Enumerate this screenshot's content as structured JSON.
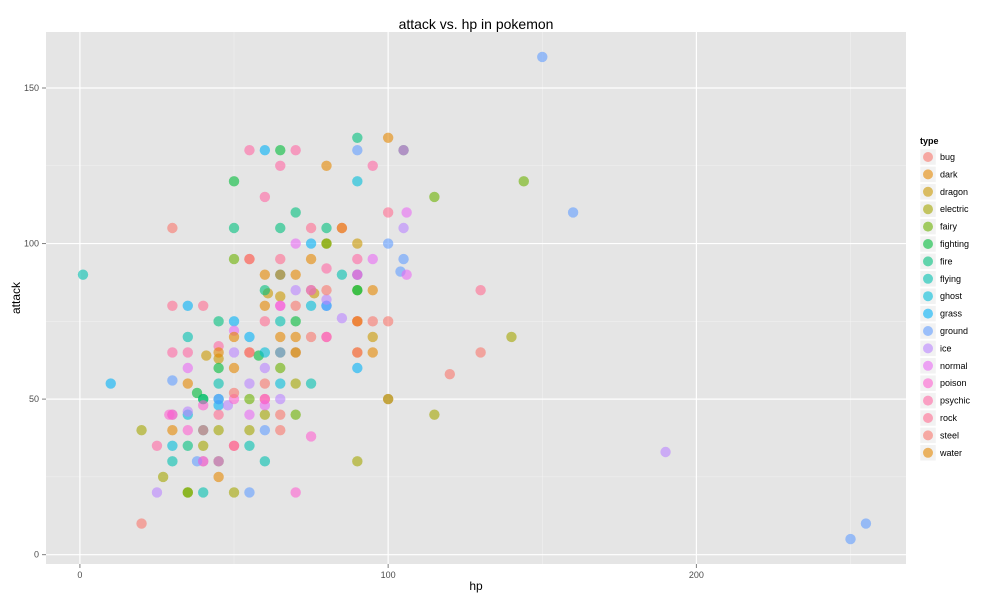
{
  "chart_data": {
    "type": "scatter",
    "title": "attack vs. hp in pokemon",
    "xlabel": "hp",
    "ylabel": "attack",
    "xlim": [
      -11,
      268
    ],
    "ylim": [
      -3,
      168
    ],
    "x_ticks": [
      0,
      100,
      200
    ],
    "y_ticks": [
      0,
      50,
      100,
      150
    ],
    "x_tick_labels": [
      "0",
      "100",
      "200"
    ],
    "y_tick_labels": [
      "0",
      "50",
      "100",
      "150"
    ],
    "grid": true,
    "legend": {
      "title": "type",
      "placement": "right"
    },
    "colors": {
      "panel": "#e5e5e5",
      "gridline": "#ffffff",
      "bug": "#f8766d",
      "dark": "#e58700",
      "dragon": "#c99800",
      "electric": "#a3a500",
      "fairy": "#6bb100",
      "fighting": "#00ba38",
      "fire": "#00bf7d",
      "flying": "#00c0af",
      "ghost": "#00bcd8",
      "grass": "#00b0f6",
      "ground": "#619cff",
      "ice": "#b983ff",
      "normal": "#e76bf3",
      "poison": "#fd61d1",
      "psychic": "#ff67a4",
      "rock": "#ff6c91",
      "steel": "#f8766d",
      "water": "#e58700"
    },
    "series": [
      {
        "name": "bug",
        "color": "#f8766d",
        "points": [
          [
            20,
            10
          ],
          [
            30,
            45
          ],
          [
            40,
            30
          ],
          [
            50,
            35
          ],
          [
            55,
            95
          ],
          [
            60,
            50
          ],
          [
            65,
            45
          ],
          [
            70,
            65
          ],
          [
            75,
            70
          ],
          [
            80,
            70
          ],
          [
            90,
            75
          ],
          [
            100,
            50
          ],
          [
            120,
            58
          ],
          [
            130,
            65
          ]
        ]
      },
      {
        "name": "dark",
        "color": "#e58700",
        "points": [
          [
            35,
            55
          ],
          [
            45,
            25
          ],
          [
            50,
            60
          ],
          [
            55,
            65
          ],
          [
            60,
            90
          ],
          [
            65,
            70
          ],
          [
            70,
            90
          ],
          [
            75,
            85
          ],
          [
            80,
            125
          ],
          [
            90,
            65
          ],
          [
            95,
            65
          ],
          [
            100,
            134
          ]
        ]
      },
      {
        "name": "dragon",
        "color": "#c99800",
        "points": [
          [
            41,
            64
          ],
          [
            45,
            63
          ],
          [
            61,
            84
          ],
          [
            65,
            83
          ],
          [
            70,
            65
          ],
          [
            76,
            84
          ],
          [
            80,
            100
          ],
          [
            90,
            100
          ],
          [
            95,
            70
          ]
        ]
      },
      {
        "name": "electric",
        "color": "#a3a500",
        "points": [
          [
            20,
            40
          ],
          [
            27,
            25
          ],
          [
            35,
            20
          ],
          [
            40,
            35
          ],
          [
            45,
            40
          ],
          [
            50,
            20
          ],
          [
            55,
            40
          ],
          [
            60,
            45
          ],
          [
            65,
            65
          ],
          [
            70,
            55
          ],
          [
            90,
            30
          ],
          [
            100,
            50
          ],
          [
            115,
            45
          ],
          [
            140,
            70
          ]
        ]
      },
      {
        "name": "fairy",
        "color": "#6bb100",
        "points": [
          [
            35,
            20
          ],
          [
            45,
            30
          ],
          [
            50,
            95
          ],
          [
            55,
            50
          ],
          [
            65,
            60
          ],
          [
            70,
            45
          ],
          [
            80,
            100
          ],
          [
            90,
            85
          ],
          [
            115,
            115
          ],
          [
            144,
            120
          ]
        ]
      },
      {
        "name": "fighting",
        "color": "#00ba38",
        "points": [
          [
            38,
            52
          ],
          [
            40,
            50
          ],
          [
            45,
            60
          ],
          [
            50,
            120
          ],
          [
            58,
            64
          ],
          [
            65,
            130
          ],
          [
            70,
            75
          ],
          [
            90,
            85
          ],
          [
            105,
            130
          ]
        ]
      },
      {
        "name": "fire",
        "color": "#00bf7d",
        "points": [
          [
            35,
            35
          ],
          [
            40,
            50
          ],
          [
            45,
            75
          ],
          [
            50,
            105
          ],
          [
            60,
            85
          ],
          [
            65,
            105
          ],
          [
            70,
            110
          ],
          [
            80,
            105
          ],
          [
            90,
            134
          ]
        ]
      },
      {
        "name": "flying",
        "color": "#00c0af",
        "points": [
          [
            1,
            90
          ],
          [
            30,
            30
          ],
          [
            35,
            70
          ],
          [
            40,
            20
          ],
          [
            45,
            55
          ],
          [
            55,
            35
          ],
          [
            60,
            30
          ],
          [
            65,
            75
          ],
          [
            75,
            55
          ],
          [
            85,
            90
          ],
          [
            90,
            90
          ]
        ]
      },
      {
        "name": "ghost",
        "color": "#00bcd8",
        "points": [
          [
            30,
            35
          ],
          [
            35,
            45
          ],
          [
            40,
            40
          ],
          [
            45,
            50
          ],
          [
            60,
            65
          ],
          [
            65,
            55
          ],
          [
            75,
            80
          ],
          [
            90,
            120
          ]
        ]
      },
      {
        "name": "grass",
        "color": "#00b0f6",
        "points": [
          [
            10,
            55
          ],
          [
            35,
            80
          ],
          [
            45,
            48
          ],
          [
            50,
            75
          ],
          [
            55,
            70
          ],
          [
            60,
            130
          ],
          [
            65,
            90
          ],
          [
            75,
            100
          ],
          [
            80,
            80
          ],
          [
            90,
            60
          ]
        ]
      },
      {
        "name": "ground",
        "color": "#619cff",
        "points": [
          [
            30,
            56
          ],
          [
            38,
            30
          ],
          [
            45,
            50
          ],
          [
            55,
            20
          ],
          [
            60,
            40
          ],
          [
            65,
            65
          ],
          [
            80,
            80
          ],
          [
            90,
            130
          ],
          [
            100,
            100
          ],
          [
            104,
            91
          ],
          [
            105,
            95
          ],
          [
            150,
            160
          ],
          [
            160,
            110
          ],
          [
            250,
            5
          ],
          [
            255,
            10
          ]
        ]
      },
      {
        "name": "ice",
        "color": "#b983ff",
        "points": [
          [
            25,
            20
          ],
          [
            35,
            46
          ],
          [
            48,
            48
          ],
          [
            50,
            65
          ],
          [
            55,
            55
          ],
          [
            60,
            60
          ],
          [
            65,
            50
          ],
          [
            70,
            85
          ],
          [
            80,
            82
          ],
          [
            85,
            76
          ],
          [
            90,
            90
          ],
          [
            105,
            105
          ],
          [
            190,
            33
          ]
        ]
      },
      {
        "name": "normal",
        "color": "#e76bf3",
        "points": [
          [
            30,
            45
          ],
          [
            35,
            60
          ],
          [
            40,
            30
          ],
          [
            45,
            30
          ],
          [
            50,
            72
          ],
          [
            55,
            45
          ],
          [
            60,
            48
          ],
          [
            65,
            80
          ],
          [
            70,
            100
          ],
          [
            75,
            85
          ],
          [
            95,
            95
          ],
          [
            105,
            130
          ],
          [
            106,
            110
          ],
          [
            106,
            90
          ]
        ]
      },
      {
        "name": "poison",
        "color": "#fd61d1",
        "points": [
          [
            29,
            45
          ],
          [
            35,
            40
          ],
          [
            40,
            48
          ],
          [
            50,
            50
          ],
          [
            60,
            50
          ],
          [
            65,
            80
          ],
          [
            70,
            20
          ],
          [
            75,
            38
          ],
          [
            80,
            70
          ],
          [
            90,
            90
          ]
        ]
      },
      {
        "name": "psychic",
        "color": "#ff67a4",
        "points": [
          [
            25,
            35
          ],
          [
            30,
            65
          ],
          [
            35,
            65
          ],
          [
            45,
            67
          ],
          [
            50,
            35
          ],
          [
            55,
            130
          ],
          [
            60,
            115
          ],
          [
            65,
            125
          ],
          [
            70,
            130
          ],
          [
            80,
            92
          ],
          [
            90,
            95
          ],
          [
            95,
            125
          ]
        ]
      },
      {
        "name": "rock",
        "color": "#ff6c91",
        "points": [
          [
            30,
            80
          ],
          [
            40,
            80
          ],
          [
            45,
            45
          ],
          [
            55,
            65
          ],
          [
            60,
            75
          ],
          [
            65,
            95
          ],
          [
            75,
            105
          ],
          [
            85,
            105
          ],
          [
            90,
            75
          ],
          [
            100,
            110
          ],
          [
            130,
            85
          ]
        ]
      },
      {
        "name": "steel",
        "color": "#f8766d",
        "points": [
          [
            30,
            105
          ],
          [
            40,
            40
          ],
          [
            50,
            52
          ],
          [
            55,
            95
          ],
          [
            60,
            55
          ],
          [
            65,
            40
          ],
          [
            70,
            80
          ],
          [
            80,
            85
          ],
          [
            90,
            65
          ],
          [
            95,
            75
          ],
          [
            100,
            75
          ]
        ]
      },
      {
        "name": "water",
        "color": "#e58700",
        "points": [
          [
            30,
            40
          ],
          [
            45,
            65
          ],
          [
            50,
            70
          ],
          [
            60,
            80
          ],
          [
            65,
            90
          ],
          [
            70,
            70
          ],
          [
            75,
            95
          ],
          [
            85,
            105
          ],
          [
            90,
            75
          ],
          [
            95,
            85
          ]
        ]
      }
    ]
  }
}
